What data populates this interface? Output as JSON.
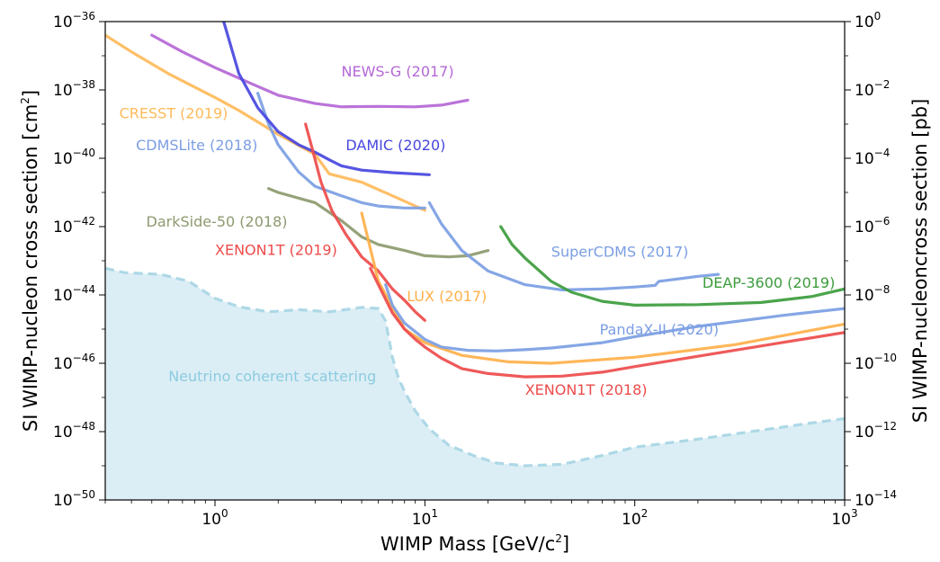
{
  "chart_data": {
    "type": "line",
    "title": "",
    "xlabel": {
      "main": "WIMP Mass [GeV/c",
      "sup": "2",
      "end": "]"
    },
    "ylabel": {
      "main": "SI WIMP-nucleon cross section [cm",
      "sup": "2",
      "end": "]"
    },
    "y2label": "SI WIMP-nucleoncross section [pb]",
    "x_scale": "log",
    "y_scale": "log",
    "xlim": [
      0.3,
      1000
    ],
    "ylim": [
      1e-50,
      1e-36
    ],
    "grid": false,
    "x_ticks": [
      {
        "value": 1,
        "base": "10",
        "exp": "0"
      },
      {
        "value": 10,
        "base": "10",
        "exp": "1"
      },
      {
        "value": 100,
        "base": "10",
        "exp": "2"
      },
      {
        "value": 1000,
        "base": "10",
        "exp": "3"
      }
    ],
    "y_ticks_left": [
      {
        "value": 1e-36,
        "base": "10",
        "exp": "−36"
      },
      {
        "value": 1e-38,
        "base": "10",
        "exp": "−38"
      },
      {
        "value": 1e-40,
        "base": "10",
        "exp": "−40"
      },
      {
        "value": 1e-42,
        "base": "10",
        "exp": "−42"
      },
      {
        "value": 1e-44,
        "base": "10",
        "exp": "−44"
      },
      {
        "value": 1e-46,
        "base": "10",
        "exp": "−46"
      },
      {
        "value": 1e-48,
        "base": "10",
        "exp": "−48"
      },
      {
        "value": 1e-50,
        "base": "10",
        "exp": "−50"
      }
    ],
    "y_ticks_right": [
      {
        "value": 1e-36,
        "base": "10",
        "exp": "0"
      },
      {
        "value": 1e-38,
        "base": "10",
        "exp": "−2"
      },
      {
        "value": 1e-40,
        "base": "10",
        "exp": "−4"
      },
      {
        "value": 1e-42,
        "base": "10",
        "exp": "−6"
      },
      {
        "value": 1e-44,
        "base": "10",
        "exp": "−8"
      },
      {
        "value": 1e-46,
        "base": "10",
        "exp": "−10"
      },
      {
        "value": 1e-48,
        "base": "10",
        "exp": "−12"
      },
      {
        "value": 1e-50,
        "base": "10",
        "exp": "−14"
      }
    ],
    "neutrino_floor": {
      "name": "Neutrino coherent scattering",
      "color": "#add8e6",
      "fill": "#dceef5",
      "label_at": [
        0.6,
        3e-47
      ],
      "x": [
        0.3,
        0.37,
        0.55,
        0.75,
        1.0,
        1.3,
        1.8,
        2.5,
        3.5,
        5.0,
        6.0,
        6.5,
        7.0,
        7.5,
        8.0,
        9.0,
        10.5,
        13,
        17,
        22,
        30,
        45,
        70,
        100,
        200,
        400,
        700,
        1000
      ],
      "y": [
        6e-44,
        4.5e-44,
        4e-44,
        2.5e-44,
        8e-45,
        4.5e-45,
        3.2e-45,
        3.7e-45,
        3.2e-45,
        4.3e-45,
        4e-45,
        1.7e-45,
        1.5e-46,
        3.5e-47,
        1.5e-47,
        4e-48,
        1.2e-48,
        4e-49,
        2e-49,
        1.2e-49,
        1e-49,
        1.1e-49,
        2e-49,
        3.5e-49,
        6e-49,
        1.1e-48,
        1.8e-48,
        2.4e-48
      ]
    },
    "series": [
      {
        "name": "NEWS-G (2017)",
        "color": "#b467d5",
        "label_at": [
          4.0,
          2.5e-38
        ],
        "x": [
          0.5,
          0.7,
          1.0,
          1.5,
          2.0,
          3.0,
          4.0,
          6.0,
          9.0,
          12.0,
          16.0
        ],
        "y": [
          4e-37,
          1.3e-37,
          4.5e-38,
          1.5e-38,
          7e-39,
          4e-39,
          3.2e-39,
          3.3e-39,
          3.2e-39,
          3.6e-39,
          5e-39
        ]
      },
      {
        "name": "CRESST (2019)",
        "color": "#ffba5a",
        "label_at": [
          0.35,
          1.5e-39
        ],
        "x": [
          0.3,
          0.4,
          0.6,
          1.0,
          1.3,
          2.0,
          3.0,
          3.5,
          5.0,
          7.0,
          10.0
        ],
        "y": [
          4e-37,
          1.3e-37,
          3e-38,
          6e-39,
          2.5e-39,
          5e-40,
          1.3e-40,
          3.5e-41,
          2e-41,
          8e-42,
          3e-42
        ]
      },
      {
        "name": "CDMSLite (2018)",
        "color": "#7b9ee3",
        "label_at": [
          0.42,
          1.7e-40
        ],
        "x": [
          1.6,
          1.8,
          2.0,
          2.5,
          3.0,
          4.0,
          5.0,
          6.0,
          8.0,
          10.0
        ],
        "y": [
          8e-39,
          1e-39,
          2.5e-40,
          4e-41,
          1.5e-41,
          8e-42,
          5e-42,
          4e-42,
          3.5e-42,
          3.5e-42
        ]
      },
      {
        "name": "DAMIC (2020)",
        "color": "#4747df",
        "label_at": [
          4.2,
          1.7e-40
        ],
        "x": [
          1.1,
          1.3,
          1.6,
          2.0,
          2.5,
          3.0,
          3.5,
          4.0,
          5.0,
          7.0,
          10.5
        ],
        "y": [
          1e-36,
          3e-38,
          3e-39,
          6e-40,
          2.5e-40,
          1.5e-40,
          9e-41,
          6e-41,
          4.5e-41,
          3.8e-41,
          3.3e-41
        ]
      },
      {
        "name": "DarkSide-50 (2018)",
        "color": "#8c9a6e",
        "label_at": [
          0.47,
          1e-42
        ],
        "x": [
          1.8,
          2.0,
          3.0,
          4.0,
          5.0,
          6.0,
          8.0,
          10.0,
          13.0,
          16.0,
          20.0
        ],
        "y": [
          1.3e-41,
          1e-41,
          5e-42,
          1.5e-42,
          5e-43,
          3e-43,
          2e-43,
          1.4e-43,
          1.3e-43,
          1.4e-43,
          2e-43
        ]
      },
      {
        "name": "XENON1T (2019)",
        "color": "#ee4b4b",
        "label_at": [
          1.0,
          1.5e-43
        ],
        "x": [
          2.7,
          2.9,
          3.2,
          3.6,
          4.2,
          5.0,
          6.0,
          7.0,
          8.0,
          9.0,
          10.0
        ],
        "y": [
          1e-39,
          2e-40,
          2e-41,
          3e-42,
          6e-43,
          1.3e-43,
          5e-44,
          1.5e-44,
          7e-45,
          3.2e-45,
          1.8e-45
        ]
      },
      {
        "name": "LUX (2017)",
        "color": "#ffb04a",
        "label_at": [
          8.2,
          6.5e-45
        ],
        "x": [
          5.0,
          6.0,
          8.0,
          10.0,
          15.0,
          25.0,
          40.0,
          100.0,
          300.0,
          1000.0
        ],
        "y": [
          2.5e-42,
          2.5e-44,
          1e-45,
          4e-46,
          1.7e-46,
          1.1e-46,
          1e-46,
          1.5e-46,
          3.5e-46,
          1.4e-45
        ]
      },
      {
        "name": "SuperCDMS (2017)",
        "color": "#7b9ee3",
        "label_at": [
          40.0,
          1.3e-43
        ],
        "x": [
          10.5,
          12.0,
          15.0,
          20.0,
          30.0,
          45.0,
          70.0,
          100.0,
          125.0,
          130.0,
          200.0,
          250.0
        ],
        "y": [
          5e-42,
          1.2e-42,
          2e-43,
          5e-44,
          2e-44,
          1.4e-44,
          1.5e-44,
          1.7e-44,
          1.9e-44,
          2.5e-44,
          3.5e-44,
          4e-44
        ]
      },
      {
        "name": "DEAP-3600 (2019)",
        "color": "#3c9c3c",
        "label_at": [
          210.0,
          1.6e-44
        ],
        "x": [
          23.0,
          26.0,
          30.0,
          40.0,
          50.0,
          70.0,
          100.0,
          200.0,
          400.0,
          700.0,
          1000.0
        ],
        "y": [
          1e-42,
          3e-43,
          1.2e-43,
          2.5e-44,
          1.2e-44,
          6.5e-45,
          5e-45,
          5.2e-45,
          6e-45,
          9e-45,
          1.5e-44
        ]
      },
      {
        "name": "PandaX-II (2020)",
        "color": "#7b9ee3",
        "label_at": [
          68.0,
          7e-46
        ],
        "x": [
          6.5,
          7.0,
          8.0,
          10.0,
          12.0,
          16.0,
          22.0,
          30.0,
          40.0,
          70.0,
          100.0,
          200.0,
          500.0,
          1000.0
        ],
        "y": [
          2e-44,
          5e-45,
          1.5e-45,
          5e-46,
          3e-46,
          2.4e-46,
          2.3e-46,
          2.5e-46,
          2.8e-46,
          4e-46,
          6e-46,
          1.2e-45,
          2.5e-45,
          4e-45
        ]
      },
      {
        "name": "XENON1T (2018)",
        "color": "#ee4b4b",
        "label_at": [
          30.0,
          1.2e-47
        ],
        "x": [
          5.5,
          6.0,
          7.0,
          8.0,
          9.0,
          10.0,
          12.0,
          15.0,
          20.0,
          30.0,
          45.0,
          70.0,
          100.0,
          200.0,
          500.0,
          1000.0
        ],
        "y": [
          6e-44,
          2e-44,
          3e-45,
          1e-45,
          5e-46,
          3e-46,
          1.4e-46,
          7e-47,
          5e-47,
          4e-47,
          4.2e-47,
          5.5e-47,
          8e-47,
          1.6e-46,
          4e-46,
          8e-46
        ]
      }
    ]
  }
}
